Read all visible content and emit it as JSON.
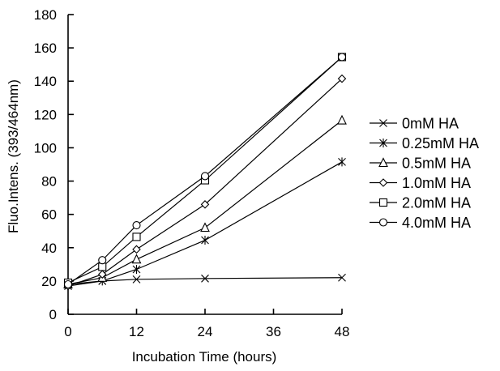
{
  "chart_data": {
    "type": "line",
    "title": "",
    "xlabel": "Incubation  Time  (hours)",
    "ylabel": "Fluo.Intens.  (393/464nm)",
    "x": [
      0,
      6,
      12,
      24,
      48
    ],
    "xticks": [
      0,
      12,
      24,
      36,
      48
    ],
    "yticks": [
      0,
      20,
      40,
      60,
      80,
      100,
      120,
      140,
      160,
      180
    ],
    "xlim": [
      0,
      48
    ],
    "ylim": [
      0,
      180
    ],
    "grid": false,
    "legend_position": "right",
    "series": [
      {
        "name": "0mM HA",
        "marker": "x",
        "values": [
          18,
          20,
          21,
          21.5,
          22
        ]
      },
      {
        "name": "0.25mM HA",
        "marker": "star",
        "values": [
          17,
          20,
          27,
          44.5,
          91.5
        ]
      },
      {
        "name": "0.5mM HA",
        "marker": "triangle",
        "values": [
          18,
          22,
          33,
          52,
          116.5
        ]
      },
      {
        "name": "1.0mM HA",
        "marker": "diamond",
        "values": [
          17,
          24,
          39,
          66,
          141.5
        ]
      },
      {
        "name": "2.0mM HA",
        "marker": "square",
        "values": [
          19,
          28.5,
          46.5,
          80.5,
          154.5
        ]
      },
      {
        "name": "4.0mM HA",
        "marker": "circle",
        "values": [
          18,
          32.5,
          53.5,
          83,
          154.5
        ]
      }
    ]
  }
}
